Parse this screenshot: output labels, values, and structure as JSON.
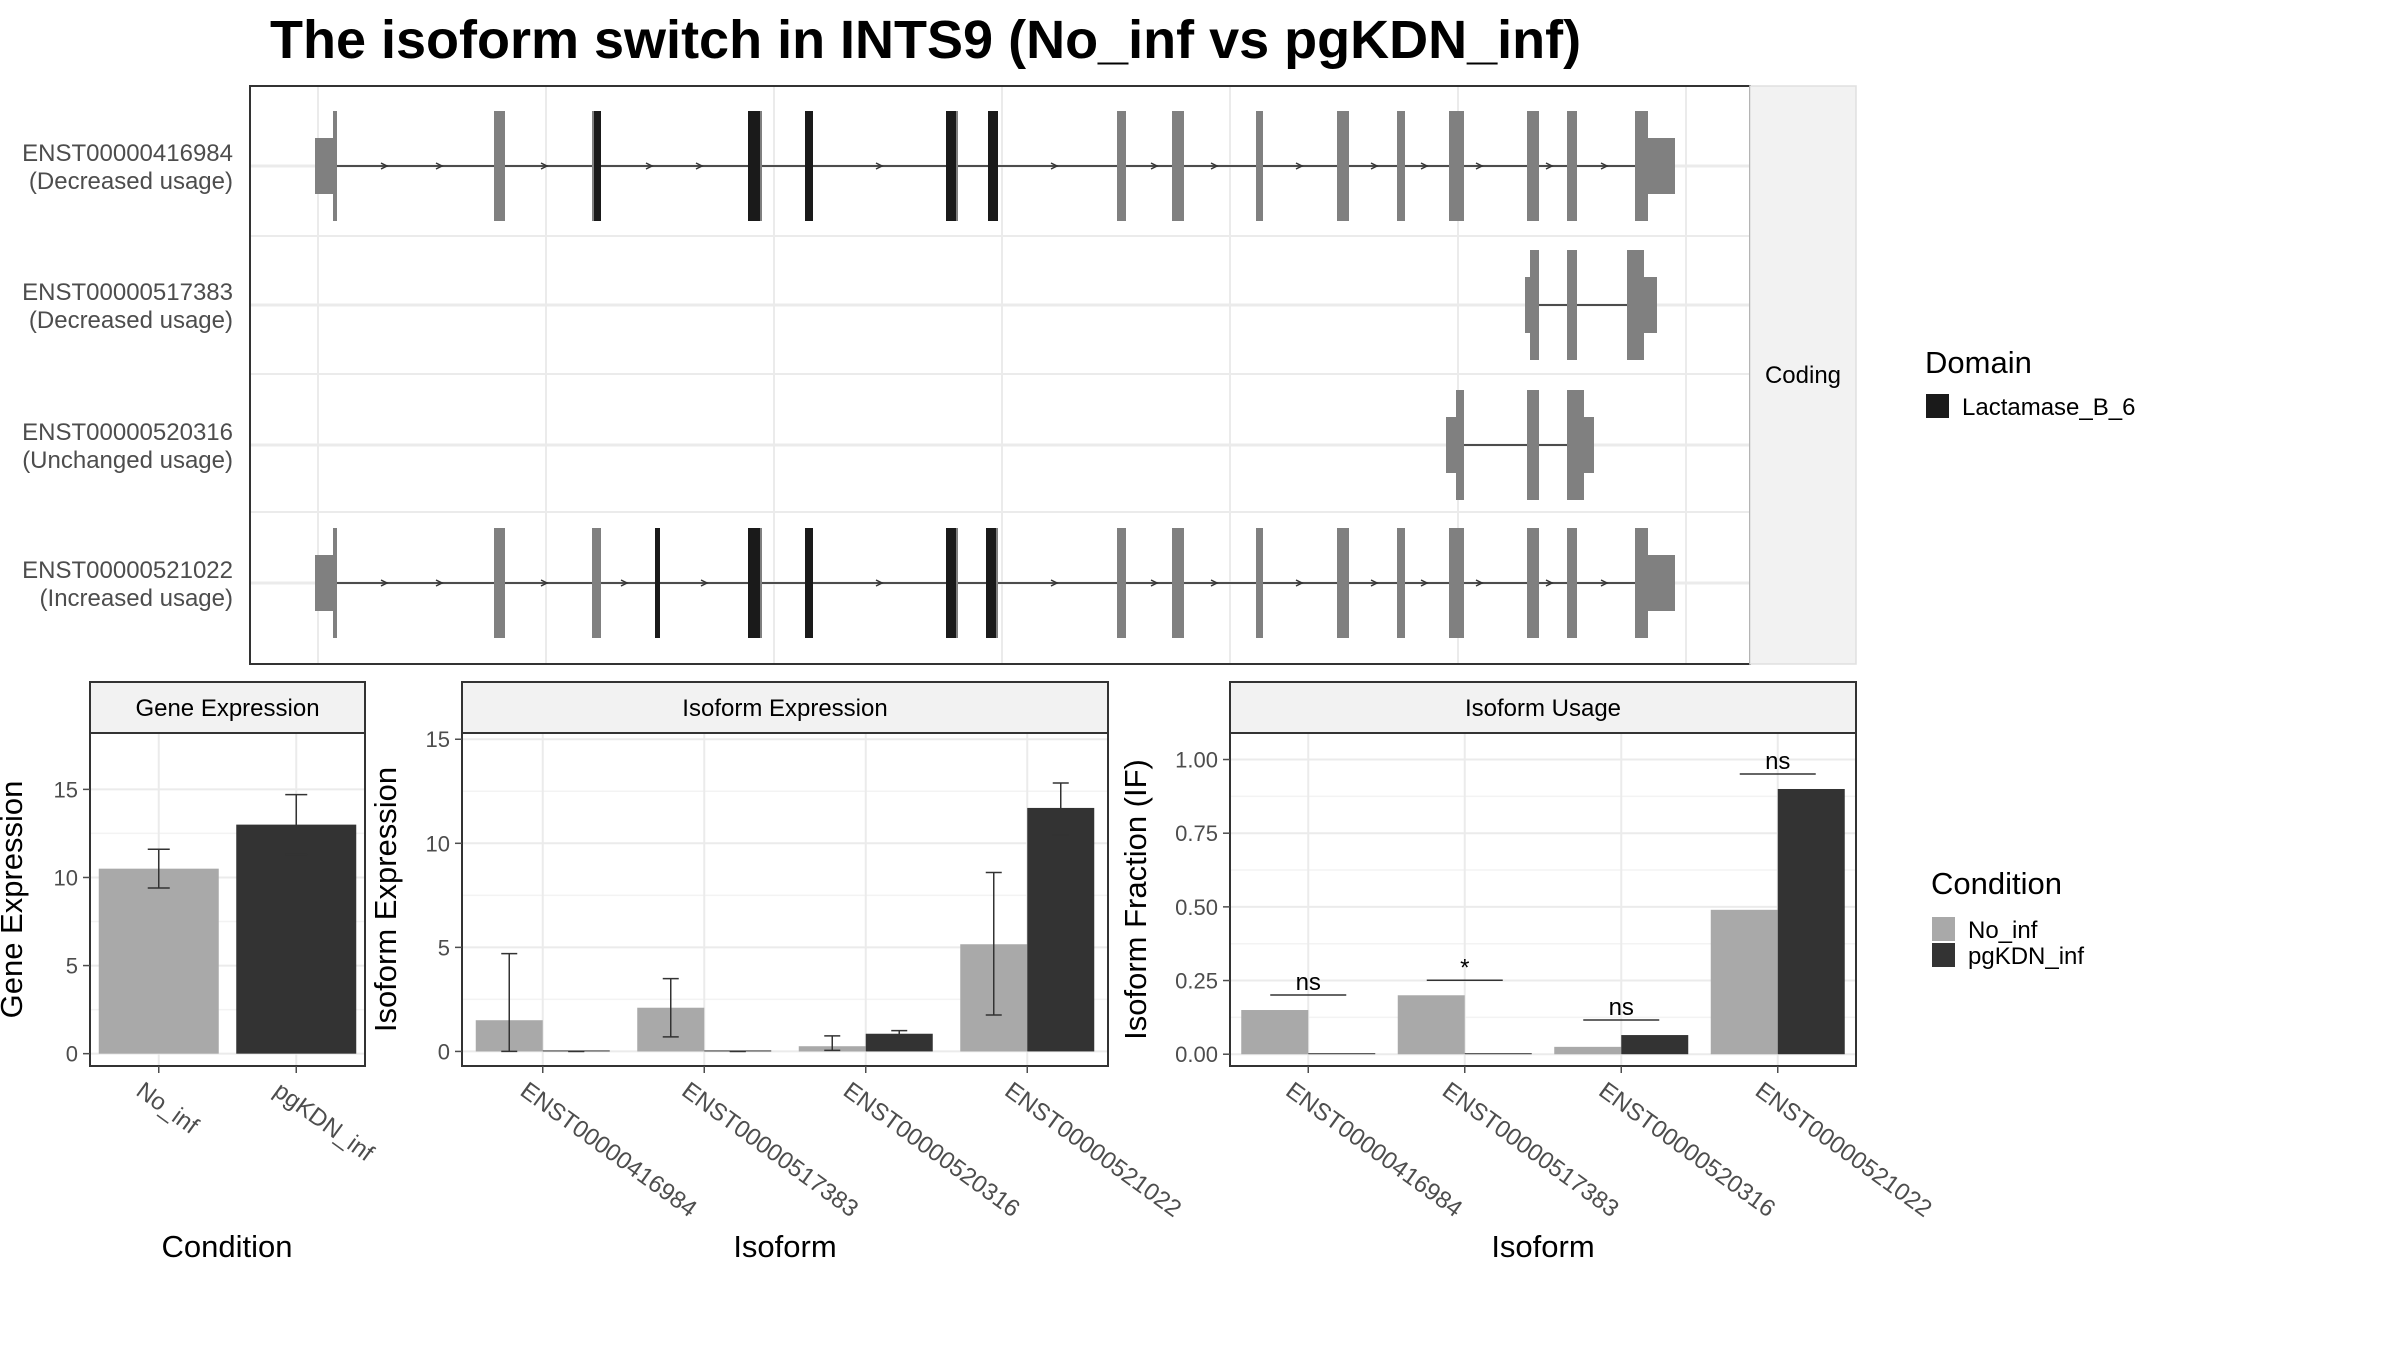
{
  "title": "The isoform switch in INTS9 (No_inf vs pgKDN_inf)",
  "transcript_panel": {
    "strip_label": "Coding",
    "isoforms": [
      {
        "id": "ENST00000416984",
        "usage": "(Decreased usage)"
      },
      {
        "id": "ENST00000517383",
        "usage": "(Decreased usage)"
      },
      {
        "id": "ENST00000520316",
        "usage": "(Unchanged usage)"
      },
      {
        "id": "ENST00000521022",
        "usage": "(Increased usage)"
      }
    ],
    "domain_legend": {
      "title": "Domain",
      "entries": [
        {
          "name": "Lactamase_B_6",
          "color": "#1a1a1a"
        }
      ]
    },
    "colors": {
      "exon": "#808080",
      "domain": "#1a1a1a",
      "intron": "#4d4d4d"
    }
  },
  "condition_legend": {
    "title": "Condition",
    "entries": [
      {
        "name": "No_inf",
        "color": "#a9a9a9"
      },
      {
        "name": "pgKDN_inf",
        "color": "#333333"
      }
    ]
  },
  "chart_data": [
    {
      "type": "bar",
      "strip": "Gene Expression",
      "xlabel": "Condition",
      "ylabel": "Gene Expression",
      "categories": [
        "No_inf",
        "pgKDN_inf"
      ],
      "values": [
        10.5,
        13.0
      ],
      "errors": [
        [
          9.4,
          11.6
        ],
        [
          11.3,
          14.7
        ]
      ],
      "ylim": [
        -0.7,
        18.2
      ],
      "yticks": [
        0,
        5,
        10,
        15
      ]
    },
    {
      "type": "bar",
      "strip": "Isoform Expression",
      "xlabel": "Isoform",
      "ylabel": "Isoform Expression",
      "categories": [
        "ENST00000416984",
        "ENST00000517383",
        "ENST00000520316",
        "ENST00000521022"
      ],
      "series": [
        {
          "name": "No_inf",
          "values": [
            1.5,
            2.1,
            0.25,
            5.15
          ],
          "errors": [
            [
              0,
              4.7
            ],
            [
              0.7,
              3.5
            ],
            [
              0.05,
              0.75
            ],
            [
              1.75,
              8.6
            ]
          ]
        },
        {
          "name": "pgKDN_inf",
          "values": [
            0,
            0,
            0.85,
            11.7
          ],
          "errors": [
            [
              0,
              0
            ],
            [
              0,
              0
            ],
            [
              0.7,
              1.0
            ],
            [
              10.4,
              12.9
            ]
          ]
        }
      ],
      "ylim": [
        -0.7,
        15.3
      ],
      "yticks": [
        0,
        5,
        10,
        15
      ]
    },
    {
      "type": "bar",
      "strip": "Isoform Usage",
      "xlabel": "Isoform",
      "ylabel": "Isoform Fraction (IF)",
      "categories": [
        "ENST00000416984",
        "ENST00000517383",
        "ENST00000520316",
        "ENST00000521022"
      ],
      "series": [
        {
          "name": "No_inf",
          "values": [
            0.15,
            0.2,
            0.025,
            0.49
          ]
        },
        {
          "name": "pgKDN_inf",
          "values": [
            0,
            0,
            0.065,
            0.9
          ]
        }
      ],
      "significance": [
        "ns",
        "*",
        "ns",
        "ns"
      ],
      "ylim": [
        -0.04,
        1.09
      ],
      "yticks": [
        "0.00",
        "0.25",
        "0.50",
        "0.75",
        "1.00"
      ]
    }
  ]
}
